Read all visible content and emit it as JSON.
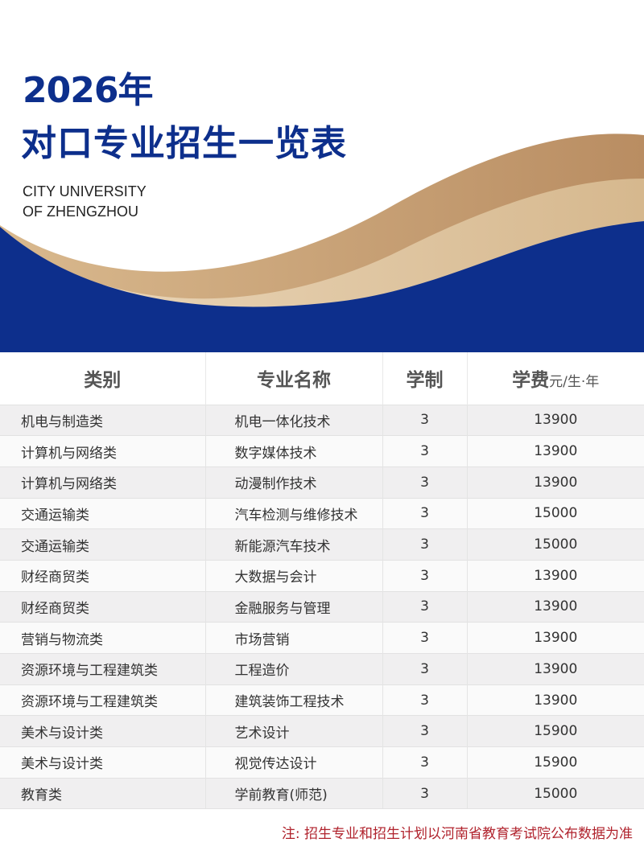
{
  "header": {
    "year_title": "2026年",
    "title": "对口专业招生一览表",
    "university_en_line1": "CITY UNIVERSITY",
    "university_en_line2": "OF ZHENGZHOU"
  },
  "colors": {
    "brand_blue": "#0d2f8c",
    "gold": "#c49a6c",
    "note_red": "#b0222c"
  },
  "table": {
    "headers": {
      "category": "类别",
      "major": "专业名称",
      "duration": "学制",
      "fee": "学费",
      "fee_unit": "元/生·年"
    },
    "rows": [
      {
        "category": "机电与制造类",
        "major": "机电一体化技术",
        "duration": "3",
        "fee": "13900"
      },
      {
        "category": "计算机与网络类",
        "major": "数字媒体技术",
        "duration": "3",
        "fee": "13900"
      },
      {
        "category": "计算机与网络类",
        "major": "动漫制作技术",
        "duration": "3",
        "fee": "13900"
      },
      {
        "category": "交通运输类",
        "major": "汽车检测与维修技术",
        "duration": "3",
        "fee": "15000"
      },
      {
        "category": "交通运输类",
        "major": "新能源汽车技术",
        "duration": "3",
        "fee": "15000"
      },
      {
        "category": "财经商贸类",
        "major": "大数据与会计",
        "duration": "3",
        "fee": "13900"
      },
      {
        "category": "财经商贸类",
        "major": "金融服务与管理",
        "duration": "3",
        "fee": "13900"
      },
      {
        "category": "营销与物流类",
        "major": "市场营销",
        "duration": "3",
        "fee": "13900"
      },
      {
        "category": "资源环境与工程建筑类",
        "major": "工程造价",
        "duration": "3",
        "fee": "13900"
      },
      {
        "category": "资源环境与工程建筑类",
        "major": "建筑装饰工程技术",
        "duration": "3",
        "fee": "13900"
      },
      {
        "category": "美术与设计类",
        "major": "艺术设计",
        "duration": "3",
        "fee": "15900"
      },
      {
        "category": "美术与设计类",
        "major": "视觉传达设计",
        "duration": "3",
        "fee": "15900"
      },
      {
        "category": "教育类",
        "major": "学前教育(师范)",
        "duration": "3",
        "fee": "15000"
      }
    ]
  },
  "note": "注: 招生专业和招生计划以河南省教育考试院公布数据为准"
}
